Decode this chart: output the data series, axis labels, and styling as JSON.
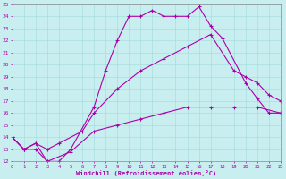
{
  "xlabel": "Windchill (Refroidissement éolien,°C)",
  "bg_color": "#c8eef0",
  "line_color": "#aa00aa",
  "grid_color": "#a8dde0",
  "xlim": [
    0,
    23
  ],
  "ylim": [
    12,
    25
  ],
  "yticks": [
    12,
    13,
    14,
    15,
    16,
    17,
    18,
    19,
    20,
    21,
    22,
    23,
    24,
    25
  ],
  "xticks": [
    0,
    1,
    2,
    3,
    4,
    5,
    6,
    7,
    8,
    9,
    10,
    11,
    12,
    13,
    14,
    15,
    16,
    17,
    18,
    19,
    20,
    21,
    22,
    23
  ],
  "curve1_x": [
    0,
    1,
    2,
    3,
    4,
    5,
    7,
    8,
    9,
    10,
    11,
    12,
    13,
    14,
    15,
    16,
    17,
    18,
    20,
    21,
    22,
    23
  ],
  "curve1_y": [
    14,
    13,
    13.5,
    12,
    12,
    13,
    16.5,
    19.5,
    22,
    24,
    24,
    24.5,
    24,
    24,
    24,
    24.8,
    23.2,
    22.2,
    18.5,
    17.2,
    16,
    16
  ],
  "curve2_x": [
    0,
    1,
    2,
    3,
    4,
    6,
    7,
    9,
    11,
    13,
    15,
    17,
    19,
    20,
    21,
    22,
    23
  ],
  "curve2_y": [
    14,
    13,
    13.5,
    13,
    13.5,
    14.5,
    16,
    18,
    19.5,
    20.5,
    21.5,
    22.5,
    19.5,
    19,
    18.5,
    17.5,
    17
  ],
  "curve3_x": [
    0,
    1,
    2,
    3,
    5,
    7,
    9,
    11,
    13,
    15,
    17,
    19,
    21,
    23
  ],
  "curve3_y": [
    14,
    13,
    13,
    12,
    12.8,
    14.5,
    15,
    15.5,
    16,
    16.5,
    16.5,
    16.5,
    16.5,
    16
  ]
}
